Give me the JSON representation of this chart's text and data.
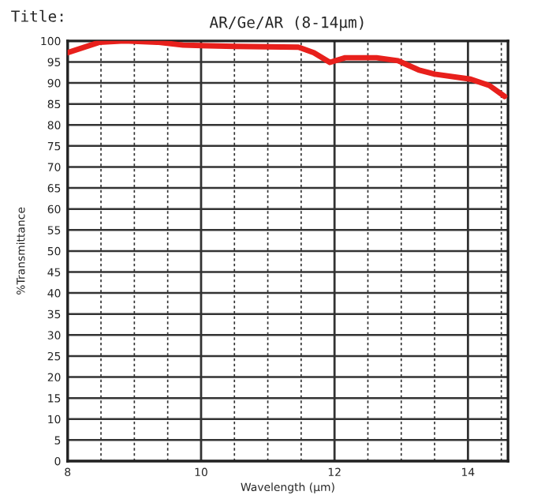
{
  "chart_data": {
    "type": "line",
    "title": "AR/Ge/AR (8-14μm)",
    "xlabel": "Wavelength (μm)",
    "ylabel": "%Transmittance",
    "annotations": [
      "Title:"
    ],
    "x": [
      8,
      8.48,
      8.85,
      9.34,
      9.73,
      10.5,
      11.46,
      11.69,
      11.93,
      12.16,
      12.63,
      12.95,
      13.26,
      13.5,
      14.04,
      14.32,
      14.55
    ],
    "series": [
      {
        "color": "#e8201c",
        "values": [
          97.2,
          99.7,
          100,
          99.7,
          99,
          98.7,
          98.5,
          97.2,
          94.9,
          96,
          96,
          95.3,
          93.1,
          92.1,
          90.9,
          89.4,
          86.8
        ]
      }
    ],
    "xlim": [
      8,
      14.6
    ],
    "ylim": [
      0,
      100
    ],
    "xticks": [
      8,
      {
        "value": 8.5,
        "label": null
      },
      {
        "value": 9,
        "label": null
      },
      {
        "value": 9.5,
        "label": null
      },
      10,
      {
        "value": 10.5,
        "label": null
      },
      {
        "value": 11,
        "label": null
      },
      {
        "value": 11.5,
        "label": null
      },
      12,
      {
        "value": 12.5,
        "label": null
      },
      {
        "value": 13,
        "label": null
      },
      {
        "value": 13.5,
        "label": null
      },
      14,
      {
        "value": 14.5,
        "label": null
      }
    ],
    "yticks": [
      0,
      5,
      10,
      15,
      20,
      25,
      30,
      35,
      40,
      45,
      50,
      55,
      60,
      65,
      70,
      75,
      80,
      85,
      90,
      95,
      100
    ],
    "grid": true,
    "marker": "none",
    "line_style": "solid"
  }
}
